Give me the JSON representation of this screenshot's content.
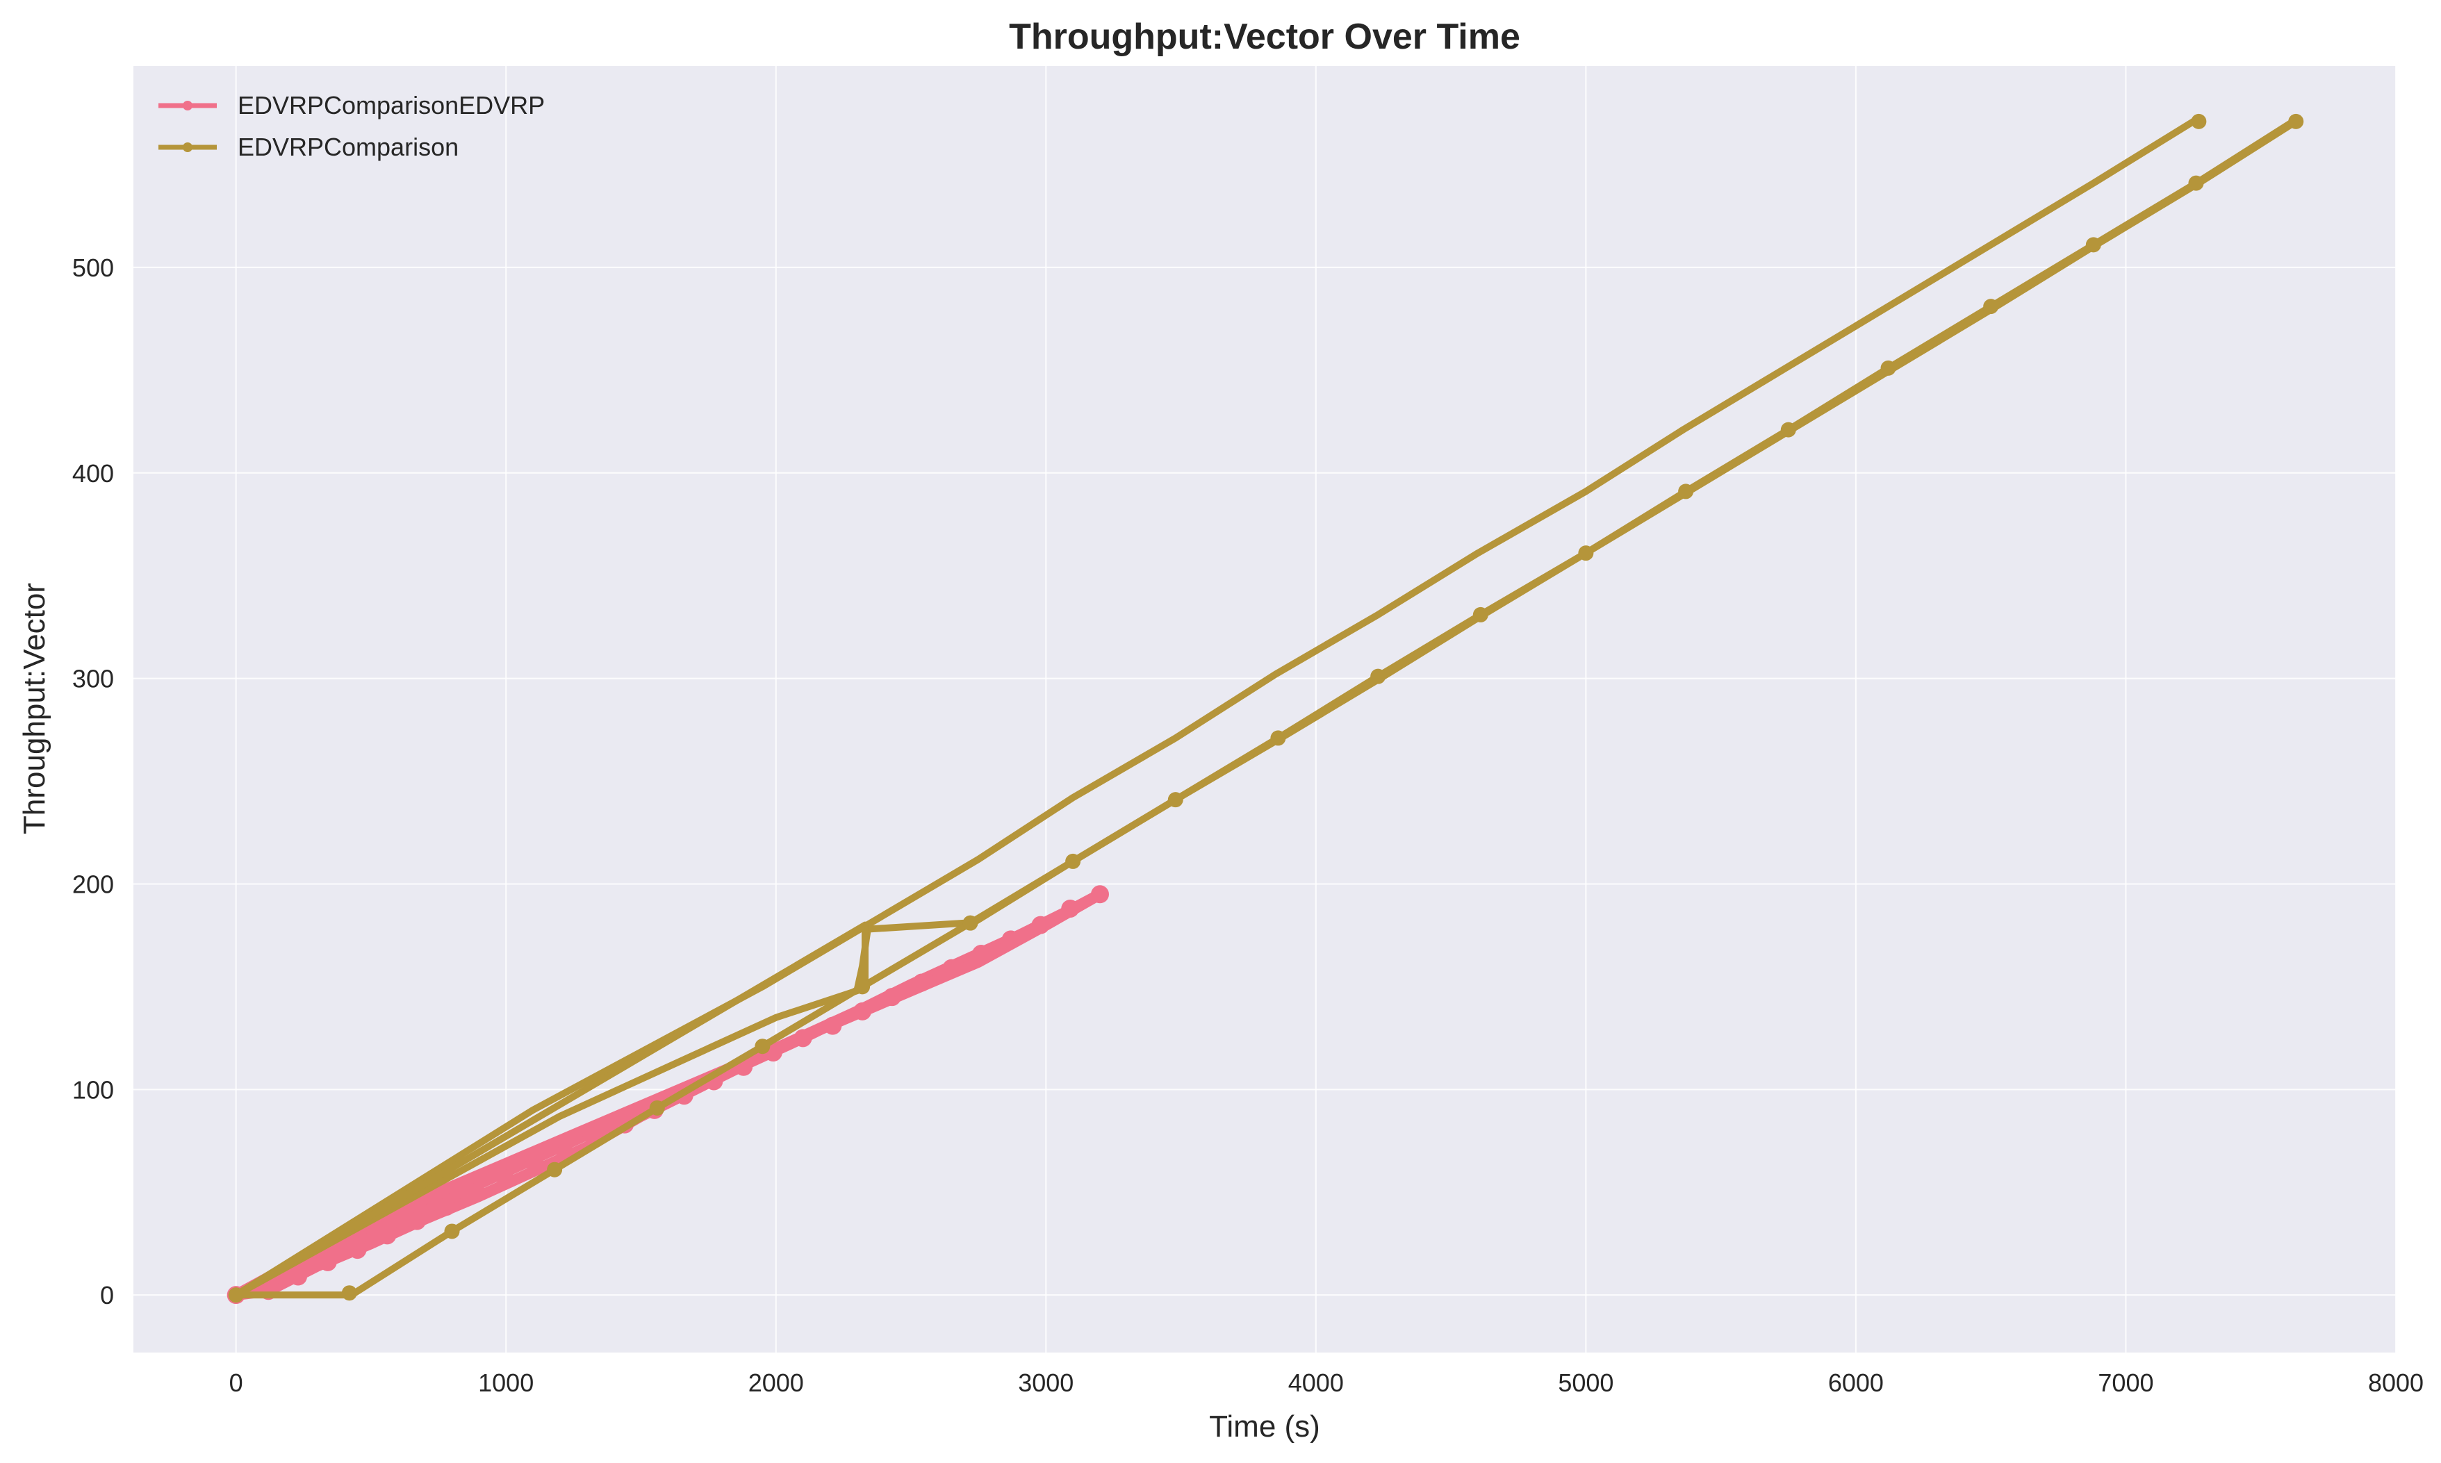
{
  "chart_data": {
    "type": "line",
    "title": "Throughput:Vector Over Time",
    "xlabel": "Time (s)",
    "ylabel": "Throughput:Vector",
    "xlim": [
      -380,
      8000
    ],
    "ylim": [
      -28,
      598
    ],
    "xticks": [
      0,
      1000,
      2000,
      3000,
      4000,
      5000,
      6000,
      7000,
      8000
    ],
    "yticks": [
      0,
      100,
      200,
      300,
      400,
      500
    ],
    "grid": true,
    "legend_position": "top-left",
    "series": [
      {
        "name": "EDVRPComparisonEDVRP",
        "color": "#f0708a",
        "lines": [
          {
            "x": [
              0,
              120,
              300,
              500,
              700,
              900,
              1100,
              1300,
              1500,
              1700,
              1900,
              2100,
              2300,
              2500,
              2700,
              2900,
              3100,
              3200
            ],
            "y": [
              0,
              2,
              14,
              25,
              37,
              48,
              60,
              72,
              87,
              100,
              113,
              125,
              138,
              151,
              163,
              175,
              188,
              195
            ]
          },
          {
            "x": [
              0,
              200,
              400,
              600,
              800,
              1000,
              1200,
              1400,
              1600,
              1800,
              2000,
              2200,
              2400,
              2600,
              2800,
              3000,
              3200
            ],
            "y": [
              0,
              11,
              24,
              36,
              48,
              60,
              72,
              84,
              96,
              108,
              120,
              132,
              144,
              156,
              168,
              180,
              195
            ]
          },
          {
            "x": [
              0,
              250,
              500,
              750,
              1000,
              1250,
              1500,
              1750,
              2000,
              2250,
              2500,
              2750,
              3000,
              3200
            ],
            "y": [
              0,
              18,
              34,
              50,
              64,
              78,
              92,
              106,
              120,
              134,
              148,
              162,
              180,
              195
            ]
          }
        ],
        "markers_x": [
          0,
          120,
          230,
          340,
          450,
          560,
          670,
          780,
          890,
          1000,
          1110,
          1220,
          1330,
          1440,
          1550,
          1660,
          1770,
          1880,
          1990,
          2100,
          2210,
          2320,
          2430,
          2540,
          2650,
          2760,
          2870,
          2980,
          3090,
          3200
        ],
        "markers_y": [
          0,
          2,
          9,
          16,
          22,
          29,
          36,
          43,
          50,
          56,
          63,
          69,
          76,
          83,
          90,
          97,
          104,
          111,
          118,
          125,
          131,
          138,
          145,
          152,
          159,
          166,
          173,
          180,
          188,
          195
        ]
      },
      {
        "name": "EDVRPComparison",
        "color": "#b5953a",
        "lines": [
          {
            "x": [
              0,
              1100,
              1950,
              2750,
              3100,
              3480,
              3850,
              4230,
              4600,
              5000,
              5360,
              5740,
              6120,
              6500,
              6880,
              7250,
              7270
            ],
            "y": [
              0,
              90,
              150,
              212,
              242,
              271,
              302,
              331,
              361,
              391,
              421,
              451,
              481,
              511,
              541,
              571,
              571
            ]
          },
          {
            "x": [
              0,
              1200,
              2000,
              2300,
              2320,
              2340,
              2700,
              2730,
              3100,
              3480,
              3860,
              4230,
              4610,
              5000,
              5370,
              5750,
              6120,
              6500,
              6880,
              7260,
              7620,
              7630
            ],
            "y": [
              0,
              87,
              135,
              148,
              160,
              178,
              181,
              181,
              211,
              241,
              271,
              301,
              331,
              361,
              391,
              421,
              451,
              481,
              511,
              541,
              571,
              571
            ]
          },
          {
            "x": [
              0,
              420,
              440,
              800,
              1180,
              1560,
              1950,
              2320,
              2720,
              3100,
              3480,
              3870,
              4250,
              4620,
              5000,
              5380,
              5760,
              6140,
              6520,
              6890,
              7270,
              7630
            ],
            "y": [
              0,
              0,
              1,
              31,
              61,
              91,
              121,
              150,
              181,
              211,
              241,
              271,
              301,
              331,
              361,
              391,
              421,
              451,
              481,
              511,
              541,
              571
            ]
          },
          {
            "x": [
              0,
              2330,
              2330
            ],
            "y": [
              0,
              180,
              150
            ]
          }
        ],
        "markers_x": [
          0,
          420,
          800,
          1180,
          1560,
          1950,
          2320,
          2720,
          3100,
          3480,
          3860,
          4230,
          4610,
          5000,
          5370,
          5750,
          6120,
          6500,
          6880,
          7260,
          7270,
          7630
        ],
        "markers_y": [
          0,
          1,
          31,
          61,
          91,
          121,
          150,
          181,
          211,
          241,
          271,
          301,
          331,
          361,
          391,
          421,
          451,
          481,
          511,
          541,
          571,
          571
        ]
      }
    ]
  },
  "colors": {
    "plot_background": "#eaeaf2",
    "page_background": "#ffffff"
  }
}
